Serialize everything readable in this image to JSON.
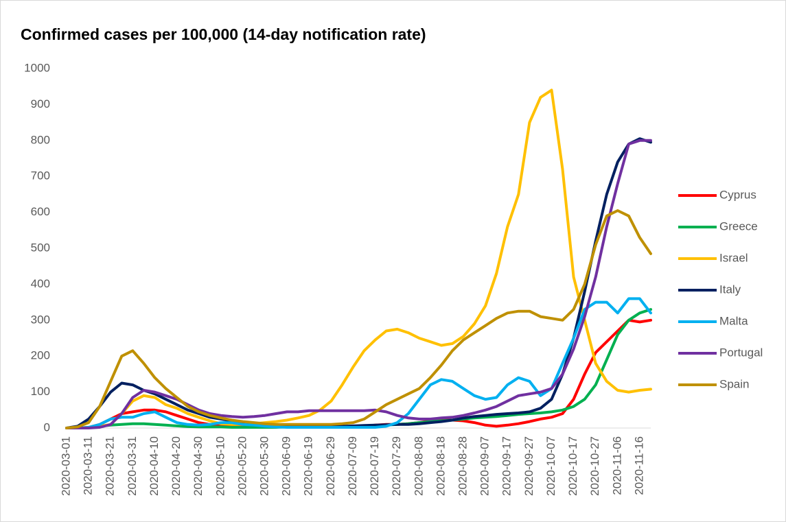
{
  "chart_data": {
    "type": "line",
    "title": "Confirmed cases per 100,000 (14-day notification rate)",
    "categories": [
      "2020-03-01",
      null,
      "2020-03-11",
      null,
      "2020-03-21",
      null,
      "2020-03-31",
      null,
      "2020-04-10",
      null,
      "2020-04-20",
      null,
      "2020-04-30",
      null,
      "2020-05-10",
      null,
      "2020-05-20",
      null,
      "2020-05-30",
      null,
      "2020-06-09",
      null,
      "2020-06-19",
      null,
      "2020-06-29",
      null,
      "2020-07-09",
      null,
      "2020-07-19",
      null,
      "2020-07-29",
      null,
      "2020-08-08",
      null,
      "2020-08-18",
      null,
      "2020-08-28",
      null,
      "2020-09-07",
      null,
      "2020-09-17",
      null,
      "2020-09-27",
      null,
      "2020-10-07",
      null,
      "2020-10-17",
      null,
      "2020-10-27",
      null,
      "2020-11-06",
      null,
      "2020-11-16",
      null
    ],
    "series": [
      {
        "name": "Cyprus",
        "color": "#ff0000",
        "values": [
          0,
          0,
          2,
          10,
          25,
          40,
          45,
          50,
          50,
          45,
          35,
          25,
          15,
          10,
          8,
          8,
          5,
          5,
          5,
          5,
          3,
          3,
          3,
          3,
          3,
          3,
          5,
          5,
          8,
          10,
          10,
          12,
          15,
          20,
          22,
          22,
          20,
          15,
          8,
          5,
          8,
          12,
          18,
          25,
          30,
          40,
          80,
          150,
          210,
          240,
          270,
          300,
          295,
          300
        ]
      },
      {
        "name": "Greece",
        "color": "#00b050",
        "values": [
          0,
          0,
          2,
          5,
          8,
          10,
          12,
          12,
          10,
          8,
          6,
          4,
          3,
          3,
          3,
          2,
          2,
          2,
          2,
          2,
          3,
          3,
          3,
          3,
          4,
          4,
          5,
          5,
          6,
          8,
          10,
          12,
          15,
          18,
          20,
          22,
          25,
          28,
          30,
          32,
          35,
          38,
          40,
          42,
          45,
          50,
          60,
          80,
          120,
          190,
          260,
          300,
          320,
          330
        ]
      },
      {
        "name": "Israel",
        "color": "#ffc000",
        "values": [
          0,
          0,
          2,
          5,
          10,
          40,
          75,
          90,
          85,
          65,
          55,
          40,
          30,
          20,
          12,
          10,
          10,
          12,
          15,
          18,
          22,
          28,
          35,
          50,
          75,
          120,
          170,
          215,
          245,
          270,
          275,
          265,
          250,
          240,
          230,
          235,
          255,
          290,
          340,
          430,
          560,
          650,
          850,
          920,
          940,
          720,
          420,
          300,
          180,
          130,
          105,
          100,
          105,
          108
        ]
      },
      {
        "name": "Italy",
        "color": "#002060",
        "values": [
          0,
          5,
          25,
          60,
          100,
          125,
          120,
          105,
          95,
          80,
          65,
          50,
          40,
          30,
          25,
          20,
          15,
          12,
          10,
          8,
          7,
          6,
          5,
          5,
          5,
          5,
          6,
          7,
          8,
          9,
          10,
          10,
          12,
          15,
          18,
          22,
          28,
          32,
          35,
          38,
          40,
          42,
          45,
          55,
          80,
          150,
          250,
          380,
          520,
          650,
          740,
          790,
          805,
          795
        ]
      },
      {
        "name": "Malta",
        "color": "#00b0f0",
        "values": [
          0,
          0,
          2,
          10,
          25,
          30,
          30,
          40,
          45,
          30,
          15,
          10,
          8,
          10,
          15,
          15,
          10,
          8,
          5,
          3,
          2,
          2,
          2,
          2,
          2,
          2,
          2,
          2,
          2,
          5,
          15,
          40,
          80,
          120,
          135,
          130,
          110,
          90,
          80,
          85,
          120,
          140,
          130,
          90,
          110,
          180,
          250,
          330,
          350,
          350,
          320,
          360,
          360,
          320
        ]
      },
      {
        "name": "Portugal",
        "color": "#7030a0",
        "values": [
          0,
          0,
          0,
          2,
          10,
          40,
          85,
          105,
          100,
          90,
          80,
          65,
          50,
          40,
          35,
          32,
          30,
          32,
          35,
          40,
          45,
          45,
          48,
          48,
          48,
          48,
          48,
          48,
          50,
          45,
          35,
          28,
          25,
          25,
          28,
          30,
          35,
          42,
          50,
          60,
          75,
          90,
          95,
          100,
          110,
          150,
          220,
          310,
          420,
          560,
          680,
          790,
          800,
          800
        ]
      },
      {
        "name": "Spain",
        "color": "#bf9000",
        "values": [
          0,
          3,
          15,
          60,
          130,
          200,
          215,
          180,
          140,
          110,
          85,
          60,
          45,
          35,
          28,
          22,
          18,
          15,
          12,
          10,
          10,
          10,
          10,
          10,
          10,
          12,
          15,
          25,
          45,
          65,
          80,
          95,
          110,
          140,
          175,
          215,
          245,
          265,
          285,
          305,
          320,
          325,
          325,
          310,
          305,
          300,
          330,
          400,
          510,
          590,
          605,
          590,
          530,
          485
        ]
      }
    ],
    "ylim": [
      0,
      1000
    ],
    "yticks": [
      0,
      100,
      200,
      300,
      400,
      500,
      600,
      700,
      800,
      900,
      1000
    ],
    "grid": false,
    "legend": "right"
  }
}
